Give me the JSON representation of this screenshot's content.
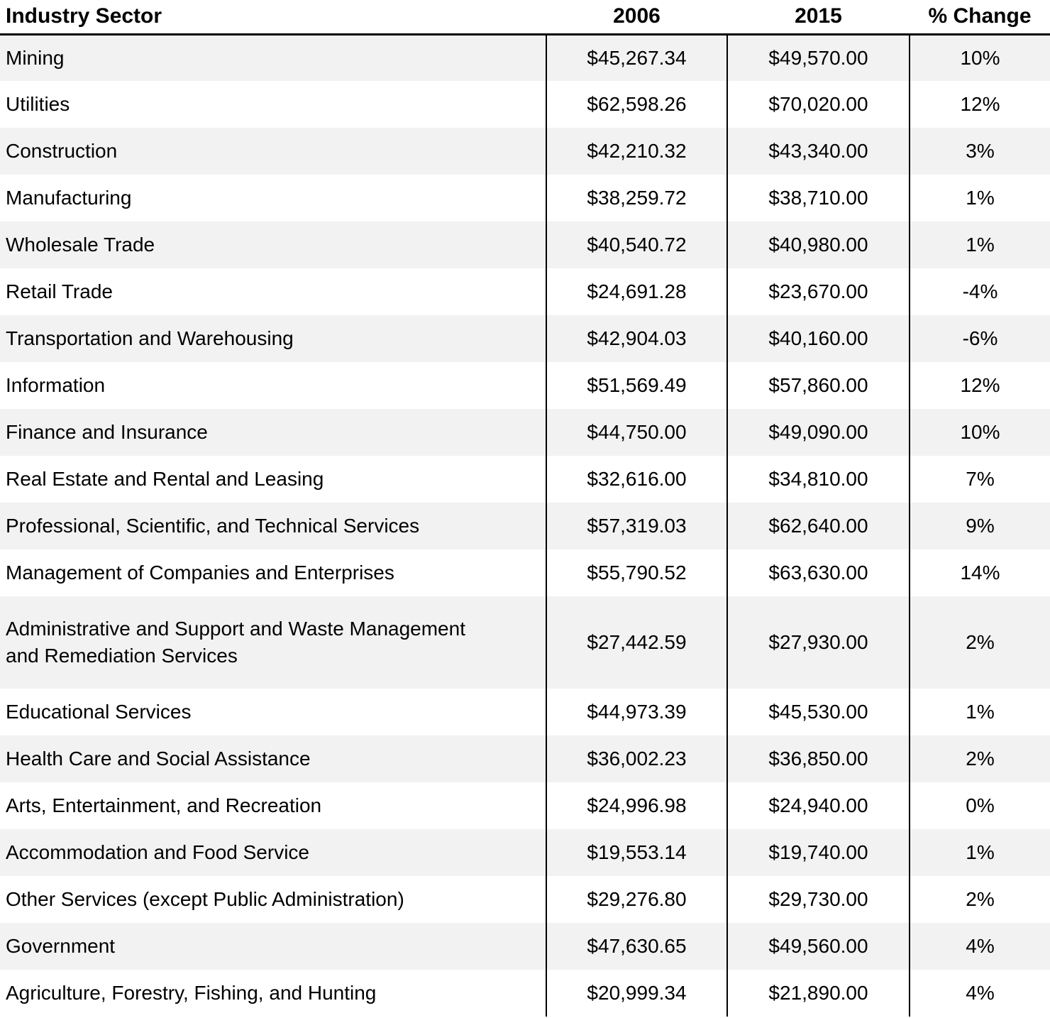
{
  "colors": {
    "row_alt": "#f2f2f2",
    "border": "#000000",
    "text": "#000000"
  },
  "table": {
    "columns": [
      {
        "label": "Industry Sector"
      },
      {
        "label": "2006"
      },
      {
        "label": "2015"
      },
      {
        "label": "% Change"
      }
    ],
    "rows": [
      {
        "sector": "Mining",
        "y2006": "$45,267.34",
        "y2015": "$49,570.00",
        "change": "10%"
      },
      {
        "sector": "Utilities",
        "y2006": "$62,598.26",
        "y2015": "$70,020.00",
        "change": "12%"
      },
      {
        "sector": "Construction",
        "y2006": "$42,210.32",
        "y2015": "$43,340.00",
        "change": "3%"
      },
      {
        "sector": "Manufacturing",
        "y2006": "$38,259.72",
        "y2015": "$38,710.00",
        "change": "1%"
      },
      {
        "sector": "Wholesale Trade",
        "y2006": "$40,540.72",
        "y2015": "$40,980.00",
        "change": "1%"
      },
      {
        "sector": "Retail Trade",
        "y2006": "$24,691.28",
        "y2015": "$23,670.00",
        "change": "-4%"
      },
      {
        "sector": "Transportation and Warehousing",
        "y2006": "$42,904.03",
        "y2015": "$40,160.00",
        "change": "-6%"
      },
      {
        "sector": "Information",
        "y2006": "$51,569.49",
        "y2015": "$57,860.00",
        "change": "12%"
      },
      {
        "sector": "Finance and Insurance",
        "y2006": "$44,750.00",
        "y2015": "$49,090.00",
        "change": "10%"
      },
      {
        "sector": "Real Estate and Rental and Leasing",
        "y2006": "$32,616.00",
        "y2015": "$34,810.00",
        "change": "7%"
      },
      {
        "sector": "Professional, Scientific, and Technical Services",
        "y2006": "$57,319.03",
        "y2015": "$62,640.00",
        "change": "9%"
      },
      {
        "sector": "Management of Companies and Enterprises",
        "y2006": "$55,790.52",
        "y2015": "$63,630.00",
        "change": "14%"
      },
      {
        "sector": "Administrative and Support and Waste Management\nand Remediation Services",
        "y2006": "$27,442.59",
        "y2015": "$27,930.00",
        "change": "2%"
      },
      {
        "sector": "Educational Services",
        "y2006": "$44,973.39",
        "y2015": "$45,530.00",
        "change": "1%"
      },
      {
        "sector": "Health Care and Social Assistance",
        "y2006": "$36,002.23",
        "y2015": "$36,850.00",
        "change": "2%"
      },
      {
        "sector": "Arts, Entertainment, and Recreation",
        "y2006": "$24,996.98",
        "y2015": "$24,940.00",
        "change": "0%"
      },
      {
        "sector": "Accommodation and Food Service",
        "y2006": "$19,553.14",
        "y2015": "$19,740.00",
        "change": "1%"
      },
      {
        "sector": "Other Services (except Public Administration)",
        "y2006": "$29,276.80",
        "y2015": "$29,730.00",
        "change": "2%"
      },
      {
        "sector": "Government",
        "y2006": "$47,630.65",
        "y2015": "$49,560.00",
        "change": "4%"
      },
      {
        "sector": "Agriculture, Forestry, Fishing, and Hunting",
        "y2006": "$20,999.34",
        "y2015": "$21,890.00",
        "change": "4%"
      }
    ]
  },
  "chart_data": {
    "type": "table",
    "columns": [
      "Industry Sector",
      "2006",
      "2015",
      "% Change"
    ],
    "categories": [
      "Mining",
      "Utilities",
      "Construction",
      "Manufacturing",
      "Wholesale Trade",
      "Retail Trade",
      "Transportation and Warehousing",
      "Information",
      "Finance and Insurance",
      "Real Estate and Rental and Leasing",
      "Professional, Scientific, and Technical Services",
      "Management of Companies and Enterprises",
      "Administrative and Support and Waste Management and Remediation Services",
      "Educational Services",
      "Health Care and Social Assistance",
      "Arts, Entertainment, and Recreation",
      "Accommodation and Food Service",
      "Other Services (except Public Administration)",
      "Government",
      "Agriculture, Forestry, Fishing, and Hunting"
    ],
    "series": [
      {
        "name": "2006",
        "values": [
          45267.34,
          62598.26,
          42210.32,
          38259.72,
          40540.72,
          24691.28,
          42904.03,
          51569.49,
          44750.0,
          32616.0,
          57319.03,
          55790.52,
          27442.59,
          44973.39,
          36002.23,
          24996.98,
          19553.14,
          29276.8,
          47630.65,
          20999.34
        ]
      },
      {
        "name": "2015",
        "values": [
          49570.0,
          70020.0,
          43340.0,
          38710.0,
          40980.0,
          23670.0,
          40160.0,
          57860.0,
          49090.0,
          34810.0,
          62640.0,
          63630.0,
          27930.0,
          45530.0,
          36850.0,
          24940.0,
          19740.0,
          29730.0,
          49560.0,
          21890.0
        ]
      },
      {
        "name": "% Change",
        "values": [
          10,
          12,
          3,
          1,
          1,
          -4,
          -6,
          12,
          10,
          7,
          9,
          14,
          2,
          1,
          2,
          0,
          1,
          2,
          4,
          4
        ]
      }
    ]
  }
}
